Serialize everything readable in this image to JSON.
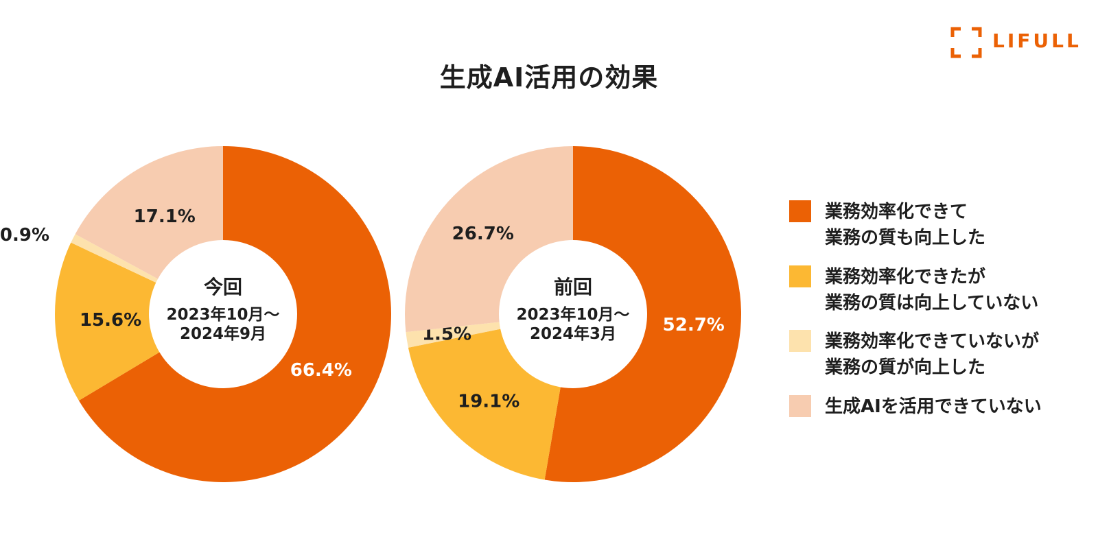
{
  "page": {
    "title": "生成AI活用の効果",
    "brand": "LIFULL"
  },
  "colors": {
    "brand": "#eb6105",
    "text": "#1e1e1e"
  },
  "chart_data": [
    {
      "type": "pie",
      "donut": true,
      "center_title": "今回",
      "center_period": [
        "2023年10月～",
        "2024年9月"
      ],
      "categories": [
        "業務効率化できて業務の質も向上した",
        "業務効率化できたが業務の質は向上していない",
        "業務効率化できていないが業務の質が向上した",
        "生成AIを活用できていない"
      ],
      "values": [
        66.4,
        15.6,
        0.9,
        17.1
      ],
      "data_labels": [
        "66.4%",
        "15.6%",
        "0.9%",
        "17.1%"
      ],
      "colors": [
        "#eb6105",
        "#fcb833",
        "#fde2ad",
        "#f7ccb0"
      ]
    },
    {
      "type": "pie",
      "donut": true,
      "center_title": "前回",
      "center_period": [
        "2023年10月～",
        "2024年3月"
      ],
      "categories": [
        "業務効率化できて業務の質も向上した",
        "業務効率化できたが業務の質は向上していない",
        "業務効率化できていないが業務の質が向上した",
        "生成AIを活用できていない"
      ],
      "values": [
        52.7,
        19.1,
        1.5,
        26.7
      ],
      "data_labels": [
        "52.7%",
        "19.1%",
        "1.5%",
        "26.7%"
      ],
      "colors": [
        "#eb6105",
        "#fcb833",
        "#fde2ad",
        "#f7ccb0"
      ]
    }
  ],
  "legend": {
    "items": [
      {
        "label": "業務効率化できて\n業務の質も向上した",
        "color": "#eb6105"
      },
      {
        "label": "業務効率化できたが\n業務の質は向上していない",
        "color": "#fcb833"
      },
      {
        "label": "業務効率化できていないが\n業務の質が向上した",
        "color": "#fde2ad"
      },
      {
        "label": "生成AIを活用できていない",
        "color": "#f7ccb0"
      }
    ]
  }
}
